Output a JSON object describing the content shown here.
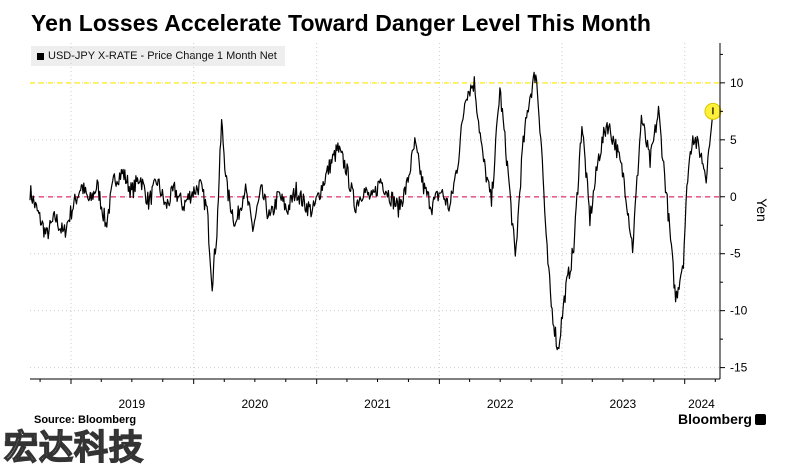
{
  "title": "Yen Losses Accelerate Toward Danger Level This Month",
  "legend": {
    "label": "USD-JPY X-RATE - Price Change 1 Month Net"
  },
  "source": "Source: Bloomberg",
  "brand": "Bloomberg",
  "watermark": "宏达科技",
  "colors": {
    "series": "#000000",
    "danger_line": "#ffee33",
    "zero_line": "#e8608a",
    "marker": "#fff03a",
    "grid": "#cccccc"
  },
  "chart_data": {
    "type": "line",
    "title": "Yen Losses Accelerate Toward Danger Level This Month",
    "xlabel": "",
    "ylabel": "Yen",
    "ylim": [
      -16,
      13.5
    ],
    "xlim": [
      "2018-09-01",
      "2024-04-15"
    ],
    "y_ticks": [
      10,
      5,
      0,
      -5,
      -10,
      -15
    ],
    "x_ticks": [
      {
        "label": "2019",
        "date": "2019-01-01"
      },
      {
        "label": "2020",
        "date": "2020-01-01"
      },
      {
        "label": "2021",
        "date": "2021-01-01"
      },
      {
        "label": "2022",
        "date": "2022-01-01"
      },
      {
        "label": "2023",
        "date": "2023-01-01"
      },
      {
        "label": "2024",
        "date": "2024-01-01"
      }
    ],
    "reference_lines": [
      {
        "y": 10,
        "style": "dashed",
        "color": "#ffee33"
      },
      {
        "y": 0,
        "style": "dashed",
        "color": "#e8608a"
      }
    ],
    "highlight_point": {
      "x": "2024-03-25",
      "y": 7.5
    },
    "series": [
      {
        "name": "USD-JPY X-RATE - Price Change 1 Month Net",
        "points": [
          [
            "2018-09-01",
            0.5
          ],
          [
            "2018-09-25",
            -1.5
          ],
          [
            "2018-10-20",
            -3.4
          ],
          [
            "2018-11-15",
            -1.8
          ],
          [
            "2018-12-10",
            -3.3
          ],
          [
            "2019-01-05",
            -1.0
          ],
          [
            "2019-02-01",
            1.0
          ],
          [
            "2019-02-25",
            -0.5
          ],
          [
            "2019-03-20",
            1.0
          ],
          [
            "2019-04-15",
            -2.5
          ],
          [
            "2019-05-10",
            1.6
          ],
          [
            "2019-06-05",
            2.1
          ],
          [
            "2019-07-01",
            0.4
          ],
          [
            "2019-07-25",
            1.8
          ],
          [
            "2019-08-20",
            -0.5
          ],
          [
            "2019-09-15",
            1.4
          ],
          [
            "2019-10-10",
            -0.9
          ],
          [
            "2019-11-05",
            0.6
          ],
          [
            "2019-12-01",
            -0.8
          ],
          [
            "2019-12-25",
            0.3
          ],
          [
            "2020-01-20",
            1.0
          ],
          [
            "2020-02-10",
            -1.2
          ],
          [
            "2020-02-25",
            -7.6
          ],
          [
            "2020-03-10",
            -3.0
          ],
          [
            "2020-03-24",
            6.5
          ],
          [
            "2020-04-10",
            0.5
          ],
          [
            "2020-05-05",
            -2.5
          ],
          [
            "2020-06-01",
            0.8
          ],
          [
            "2020-06-25",
            -2.8
          ],
          [
            "2020-07-20",
            0.5
          ],
          [
            "2020-08-15",
            -2.0
          ],
          [
            "2020-09-10",
            0.2
          ],
          [
            "2020-10-05",
            -1.2
          ],
          [
            "2020-11-01",
            0.6
          ],
          [
            "2020-11-25",
            -0.6
          ],
          [
            "2020-12-20",
            -1.3
          ],
          [
            "2021-01-15",
            0.8
          ],
          [
            "2021-02-10",
            2.8
          ],
          [
            "2021-03-05",
            4.2
          ],
          [
            "2021-03-30",
            2.5
          ],
          [
            "2021-04-25",
            -0.8
          ],
          [
            "2021-05-20",
            0.6
          ],
          [
            "2021-06-15",
            -0.3
          ],
          [
            "2021-07-10",
            1.5
          ],
          [
            "2021-08-05",
            0.2
          ],
          [
            "2021-09-01",
            -1.0
          ],
          [
            "2021-09-25",
            0.8
          ],
          [
            "2021-10-20",
            4.6
          ],
          [
            "2021-11-15",
            0.8
          ],
          [
            "2021-12-10",
            -0.8
          ],
          [
            "2022-01-05",
            0.5
          ],
          [
            "2022-02-01",
            -1.0
          ],
          [
            "2022-02-25",
            3.0
          ],
          [
            "2022-03-20",
            9.0
          ],
          [
            "2022-04-15",
            10.0
          ],
          [
            "2022-05-10",
            3.5
          ],
          [
            "2022-06-05",
            -0.5
          ],
          [
            "2022-06-30",
            9.5
          ],
          [
            "2022-07-25",
            2.0
          ],
          [
            "2022-08-15",
            -5.5
          ],
          [
            "2022-09-05",
            4.0
          ],
          [
            "2022-09-25",
            8.5
          ],
          [
            "2022-10-15",
            11.0
          ],
          [
            "2022-11-01",
            4.5
          ],
          [
            "2022-11-15",
            -4.0
          ],
          [
            "2022-11-30",
            -9.5
          ],
          [
            "2022-12-20",
            -13.5
          ],
          [
            "2023-01-10",
            -8.5
          ],
          [
            "2023-02-05",
            -4.5
          ],
          [
            "2023-03-01",
            6.5
          ],
          [
            "2023-03-25",
            -2.0
          ],
          [
            "2023-04-20",
            3.5
          ],
          [
            "2023-05-15",
            6.5
          ],
          [
            "2023-06-10",
            4.5
          ],
          [
            "2023-07-05",
            1.5
          ],
          [
            "2023-07-30",
            -4.5
          ],
          [
            "2023-08-25",
            7.0
          ],
          [
            "2023-09-20",
            3.0
          ],
          [
            "2023-10-15",
            7.5
          ],
          [
            "2023-11-10",
            -0.5
          ],
          [
            "2023-12-05",
            -9.0
          ],
          [
            "2023-12-28",
            -5.5
          ],
          [
            "2024-01-10",
            2.0
          ],
          [
            "2024-01-25",
            5.5
          ],
          [
            "2024-02-15",
            4.0
          ],
          [
            "2024-03-05",
            2.0
          ],
          [
            "2024-03-15",
            4.5
          ],
          [
            "2024-03-25",
            7.5
          ]
        ]
      }
    ]
  }
}
